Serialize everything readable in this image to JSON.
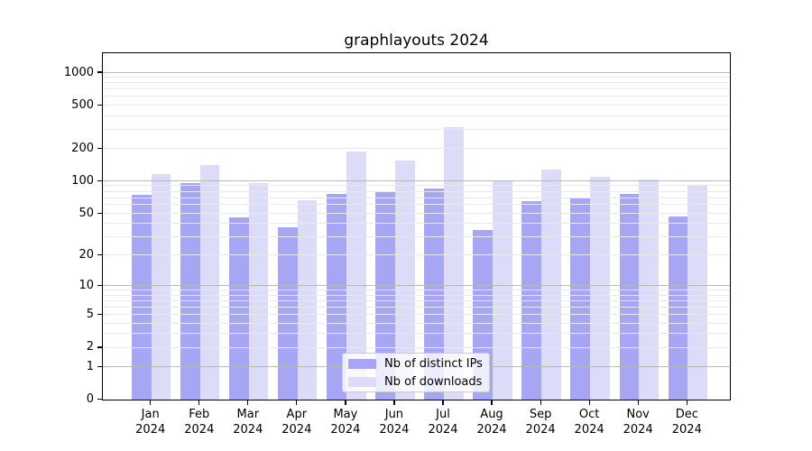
{
  "title": "graphlayouts 2024",
  "chart_data": {
    "type": "bar",
    "title": "graphlayouts 2024",
    "categories": [
      "Jan 2024",
      "Feb 2024",
      "Mar 2024",
      "Apr 2024",
      "May 2024",
      "Jun 2024",
      "Jul 2024",
      "Aug 2024",
      "Sep 2024",
      "Oct 2024",
      "Nov 2024",
      "Dec 2024"
    ],
    "series": [
      {
        "name": "Nb of distinct IPs",
        "color": "#a6a6f5",
        "values": [
          74,
          96,
          46,
          37,
          76,
          79,
          86,
          35,
          65,
          70,
          76,
          47
        ]
      },
      {
        "name": "Nb of downloads",
        "color": "#dcdcf9",
        "values": [
          117,
          140,
          95,
          66,
          187,
          155,
          315,
          101,
          127,
          110,
          104,
          93
        ]
      }
    ],
    "xlabel": "",
    "ylabel": "",
    "yscale": "log1p",
    "ylim": [
      0,
      1480
    ],
    "yticks": [
      0,
      1,
      2,
      5,
      10,
      20,
      50,
      100,
      200,
      500,
      1000
    ],
    "major_gridlines": [
      1,
      10,
      100,
      1000
    ],
    "minor_gridlines": [
      2,
      3,
      4,
      5,
      6,
      7,
      8,
      9,
      20,
      30,
      40,
      50,
      60,
      70,
      80,
      90,
      200,
      300,
      400,
      500,
      600,
      700,
      800,
      900
    ],
    "grid": "horizontal",
    "legend_position": "lower center"
  },
  "legend": {
    "items": [
      {
        "label": "Nb of distinct IPs"
      },
      {
        "label": "Nb of downloads"
      }
    ]
  },
  "colors": {
    "bar_dark": "#a6a6f5",
    "bar_light": "#dcdcf9",
    "grid_major": "#b8b8b8",
    "grid_minor": "#e9e9e9",
    "spine": "#000000",
    "legend_border": "#cccccc",
    "text": "#000000"
  }
}
